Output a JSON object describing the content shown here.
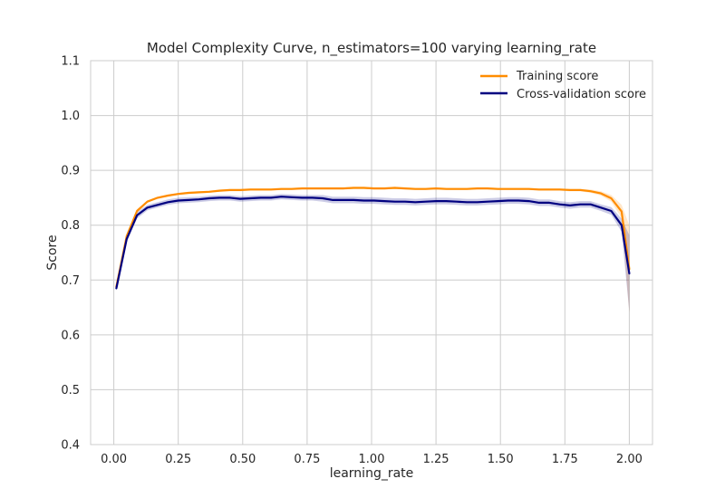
{
  "chart_data": {
    "type": "line",
    "title": "Model Complexity Curve, n_estimators=100 varying learning_rate",
    "xlabel": "learning_rate",
    "ylabel": "Score",
    "xlim": [
      -0.09,
      2.09
    ],
    "ylim": [
      0.4,
      1.1
    ],
    "xticks": [
      0.0,
      0.25,
      0.5,
      0.75,
      1.0,
      1.25,
      1.5,
      1.75,
      2.0
    ],
    "xtick_labels": [
      "0.00",
      "0.25",
      "0.50",
      "0.75",
      "1.00",
      "1.25",
      "1.50",
      "1.75",
      "2.00"
    ],
    "yticks": [
      0.4,
      0.5,
      0.6,
      0.7,
      0.8,
      0.9,
      1.0,
      1.1
    ],
    "ytick_labels": [
      "0.4",
      "0.5",
      "0.6",
      "0.7",
      "0.8",
      "0.9",
      "1.0",
      "1.1"
    ],
    "grid": true,
    "legend_position": "top-right",
    "x": [
      0.01,
      0.05,
      0.09,
      0.13,
      0.17,
      0.21,
      0.25,
      0.29,
      0.33,
      0.37,
      0.41,
      0.45,
      0.49,
      0.53,
      0.57,
      0.61,
      0.65,
      0.69,
      0.73,
      0.77,
      0.81,
      0.85,
      0.89,
      0.93,
      0.97,
      1.01,
      1.05,
      1.09,
      1.13,
      1.17,
      1.21,
      1.25,
      1.29,
      1.33,
      1.37,
      1.41,
      1.45,
      1.49,
      1.53,
      1.57,
      1.61,
      1.65,
      1.69,
      1.73,
      1.77,
      1.81,
      1.85,
      1.89,
      1.93,
      1.97,
      2.0
    ],
    "series": [
      {
        "name": "Training score",
        "color": "#ff8c00",
        "values": [
          0.688,
          0.78,
          0.826,
          0.843,
          0.85,
          0.854,
          0.857,
          0.859,
          0.86,
          0.861,
          0.863,
          0.864,
          0.864,
          0.865,
          0.865,
          0.865,
          0.866,
          0.866,
          0.867,
          0.867,
          0.867,
          0.867,
          0.867,
          0.868,
          0.868,
          0.867,
          0.867,
          0.868,
          0.867,
          0.866,
          0.866,
          0.867,
          0.866,
          0.866,
          0.866,
          0.867,
          0.867,
          0.866,
          0.866,
          0.866,
          0.866,
          0.865,
          0.865,
          0.865,
          0.864,
          0.864,
          0.862,
          0.858,
          0.849,
          0.825,
          0.72
        ],
        "std": [
          0.003,
          0.004,
          0.003,
          0.002,
          0.002,
          0.002,
          0.002,
          0.002,
          0.002,
          0.002,
          0.002,
          0.002,
          0.002,
          0.002,
          0.002,
          0.002,
          0.002,
          0.002,
          0.002,
          0.002,
          0.002,
          0.002,
          0.002,
          0.002,
          0.002,
          0.002,
          0.002,
          0.002,
          0.002,
          0.002,
          0.002,
          0.002,
          0.002,
          0.002,
          0.002,
          0.002,
          0.002,
          0.002,
          0.002,
          0.002,
          0.002,
          0.002,
          0.002,
          0.002,
          0.002,
          0.002,
          0.003,
          0.004,
          0.006,
          0.012,
          0.08
        ]
      },
      {
        "name": "Cross-validation score",
        "color": "#000080",
        "values": [
          0.685,
          0.775,
          0.818,
          0.832,
          0.837,
          0.842,
          0.845,
          0.846,
          0.847,
          0.849,
          0.85,
          0.85,
          0.848,
          0.849,
          0.85,
          0.85,
          0.852,
          0.851,
          0.85,
          0.85,
          0.849,
          0.846,
          0.846,
          0.846,
          0.845,
          0.845,
          0.844,
          0.843,
          0.843,
          0.842,
          0.843,
          0.844,
          0.844,
          0.843,
          0.842,
          0.842,
          0.843,
          0.844,
          0.845,
          0.845,
          0.844,
          0.841,
          0.841,
          0.838,
          0.836,
          0.838,
          0.838,
          0.832,
          0.826,
          0.8,
          0.712
        ],
        "std": [
          0.004,
          0.006,
          0.006,
          0.005,
          0.005,
          0.005,
          0.005,
          0.005,
          0.005,
          0.005,
          0.005,
          0.005,
          0.005,
          0.005,
          0.005,
          0.005,
          0.005,
          0.005,
          0.005,
          0.005,
          0.006,
          0.006,
          0.006,
          0.006,
          0.006,
          0.006,
          0.006,
          0.006,
          0.006,
          0.006,
          0.006,
          0.006,
          0.006,
          0.006,
          0.006,
          0.006,
          0.006,
          0.006,
          0.006,
          0.006,
          0.006,
          0.006,
          0.006,
          0.006,
          0.006,
          0.006,
          0.006,
          0.006,
          0.007,
          0.012,
          0.07
        ]
      }
    ]
  }
}
